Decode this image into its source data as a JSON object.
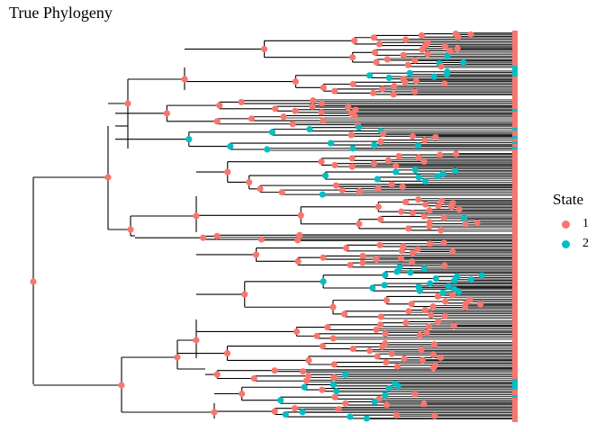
{
  "title": "True Phylogeny",
  "legend": {
    "title": "State",
    "items": [
      {
        "label": "1",
        "color": "#F8766D"
      },
      {
        "label": "2",
        "color": "#00BFC4"
      }
    ]
  },
  "colors": {
    "branch": "#000000",
    "state1": "#F8766D",
    "state2": "#00BFC4"
  },
  "chart_data": {
    "type": "phylogenetic-tree",
    "node_states": [
      "1",
      "2"
    ],
    "tips": "tree with several hundred tips; each node marked with its ancestral state colour (1 = coral, 2 = teal)"
  }
}
